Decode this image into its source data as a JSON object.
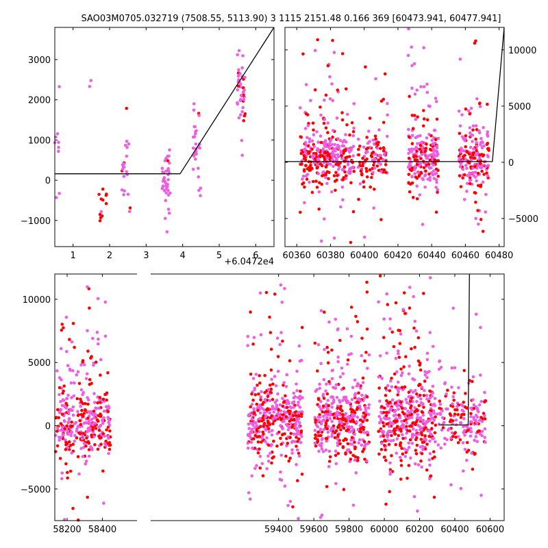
{
  "title": "SAO03M0705.032719 (7508.55, 5113.90)   3 1115 2151.48 0.166 369 [60473.941, 60477.941]",
  "colors": {
    "red": "#ff0000",
    "magenta": "#ee5ee3",
    "line": "#000000"
  },
  "chart_data": [
    {
      "id": "top-left",
      "type": "scatter",
      "xlim": [
        0.5,
        6.5
      ],
      "ylim": [
        -1650,
        3800
      ],
      "x_offset_label": "+6.0472e4",
      "xticks": [
        1,
        2,
        3,
        4,
        5,
        6
      ],
      "yticks": [
        -1000,
        0,
        1000,
        2000,
        3000
      ],
      "ytick_side": "left",
      "groups": [
        {
          "x": 0.55,
          "mean": 500,
          "spread": 700,
          "n": 14,
          "red_frac": 0.0
        },
        {
          "x": 1.45,
          "mean": 2400,
          "spread": 150,
          "n": 2,
          "red_frac": 0.0
        },
        {
          "x": 1.8,
          "mean": -600,
          "spread": 280,
          "n": 12,
          "red_frac": 0.95
        },
        {
          "x": 2.45,
          "mean": 300,
          "spread": 600,
          "n": 22,
          "red_frac": 0.2
        },
        {
          "x": 3.55,
          "mean": 50,
          "spread": 350,
          "n": 40,
          "red_frac": 0.05
        },
        {
          "x": 4.4,
          "mean": 800,
          "spread": 500,
          "n": 28,
          "red_frac": 0.05
        },
        {
          "x": 5.6,
          "mean": 2300,
          "spread": 600,
          "n": 45,
          "red_frac": 0.35
        }
      ],
      "model": {
        "x": [
          0.5,
          3.93,
          6.5
        ],
        "y": [
          160,
          160,
          3800
        ]
      }
    },
    {
      "id": "top-right",
      "type": "scatter",
      "xlim": [
        60353,
        60483
      ],
      "ylim": [
        -7500,
        12000
      ],
      "xticks": [
        60360,
        60380,
        60400,
        60420,
        60440,
        60460,
        60480
      ],
      "yticks": [
        -5000,
        0,
        5000,
        10000
      ],
      "ytick_side": "right",
      "groups": [
        {
          "x": 60371,
          "mean": 200,
          "spread": 1200,
          "n": 170,
          "red_frac": 0.5,
          "tail": 0.22
        },
        {
          "x": 60385,
          "mean": 400,
          "spread": 1300,
          "n": 180,
          "red_frac": 0.45,
          "tail": 0.25
        },
        {
          "x": 60405,
          "mean": 300,
          "spread": 1000,
          "n": 120,
          "red_frac": 0.5,
          "tail": 0.18
        },
        {
          "x": 60435,
          "mean": 300,
          "spread": 1300,
          "n": 230,
          "red_frac": 0.4,
          "tail": 0.3
        },
        {
          "x": 60465,
          "mean": 300,
          "spread": 1200,
          "n": 200,
          "red_frac": 0.45,
          "tail": 0.3
        }
      ],
      "model": {
        "x": [
          60353,
          60476.0,
          60483
        ],
        "y": [
          60,
          60,
          12600
        ]
      }
    },
    {
      "id": "bottom",
      "type": "scatter",
      "xlim": [
        58130,
        60680
      ],
      "ylim": [
        -7500,
        12000
      ],
      "xticks": [
        58200,
        58400,
        59400,
        59600,
        59800,
        60000,
        60200,
        60400,
        60600
      ],
      "yticks": [
        -5000,
        0,
        5000,
        10000
      ],
      "ytick_side": "left",
      "groups": [
        {
          "x": 58290,
          "mean": 200,
          "spread": 1400,
          "n": 380,
          "red_frac": 0.45,
          "tail": 0.22
        },
        {
          "x": 59380,
          "mean": 350,
          "spread": 1400,
          "n": 420,
          "red_frac": 0.4,
          "tail": 0.22
        },
        {
          "x": 59760,
          "mean": 300,
          "spread": 1400,
          "n": 420,
          "red_frac": 0.4,
          "tail": 0.25
        },
        {
          "x": 60120,
          "mean": 400,
          "spread": 1500,
          "n": 460,
          "red_frac": 0.4,
          "tail": 0.28
        },
        {
          "x": 60420,
          "mean": 250,
          "spread": 1300,
          "n": 200,
          "red_frac": 0.4,
          "tail": 0.25
        }
      ],
      "model": {
        "x": [
          60310,
          60476.0,
          60483
        ],
        "y": [
          60,
          60,
          12600
        ]
      }
    }
  ]
}
